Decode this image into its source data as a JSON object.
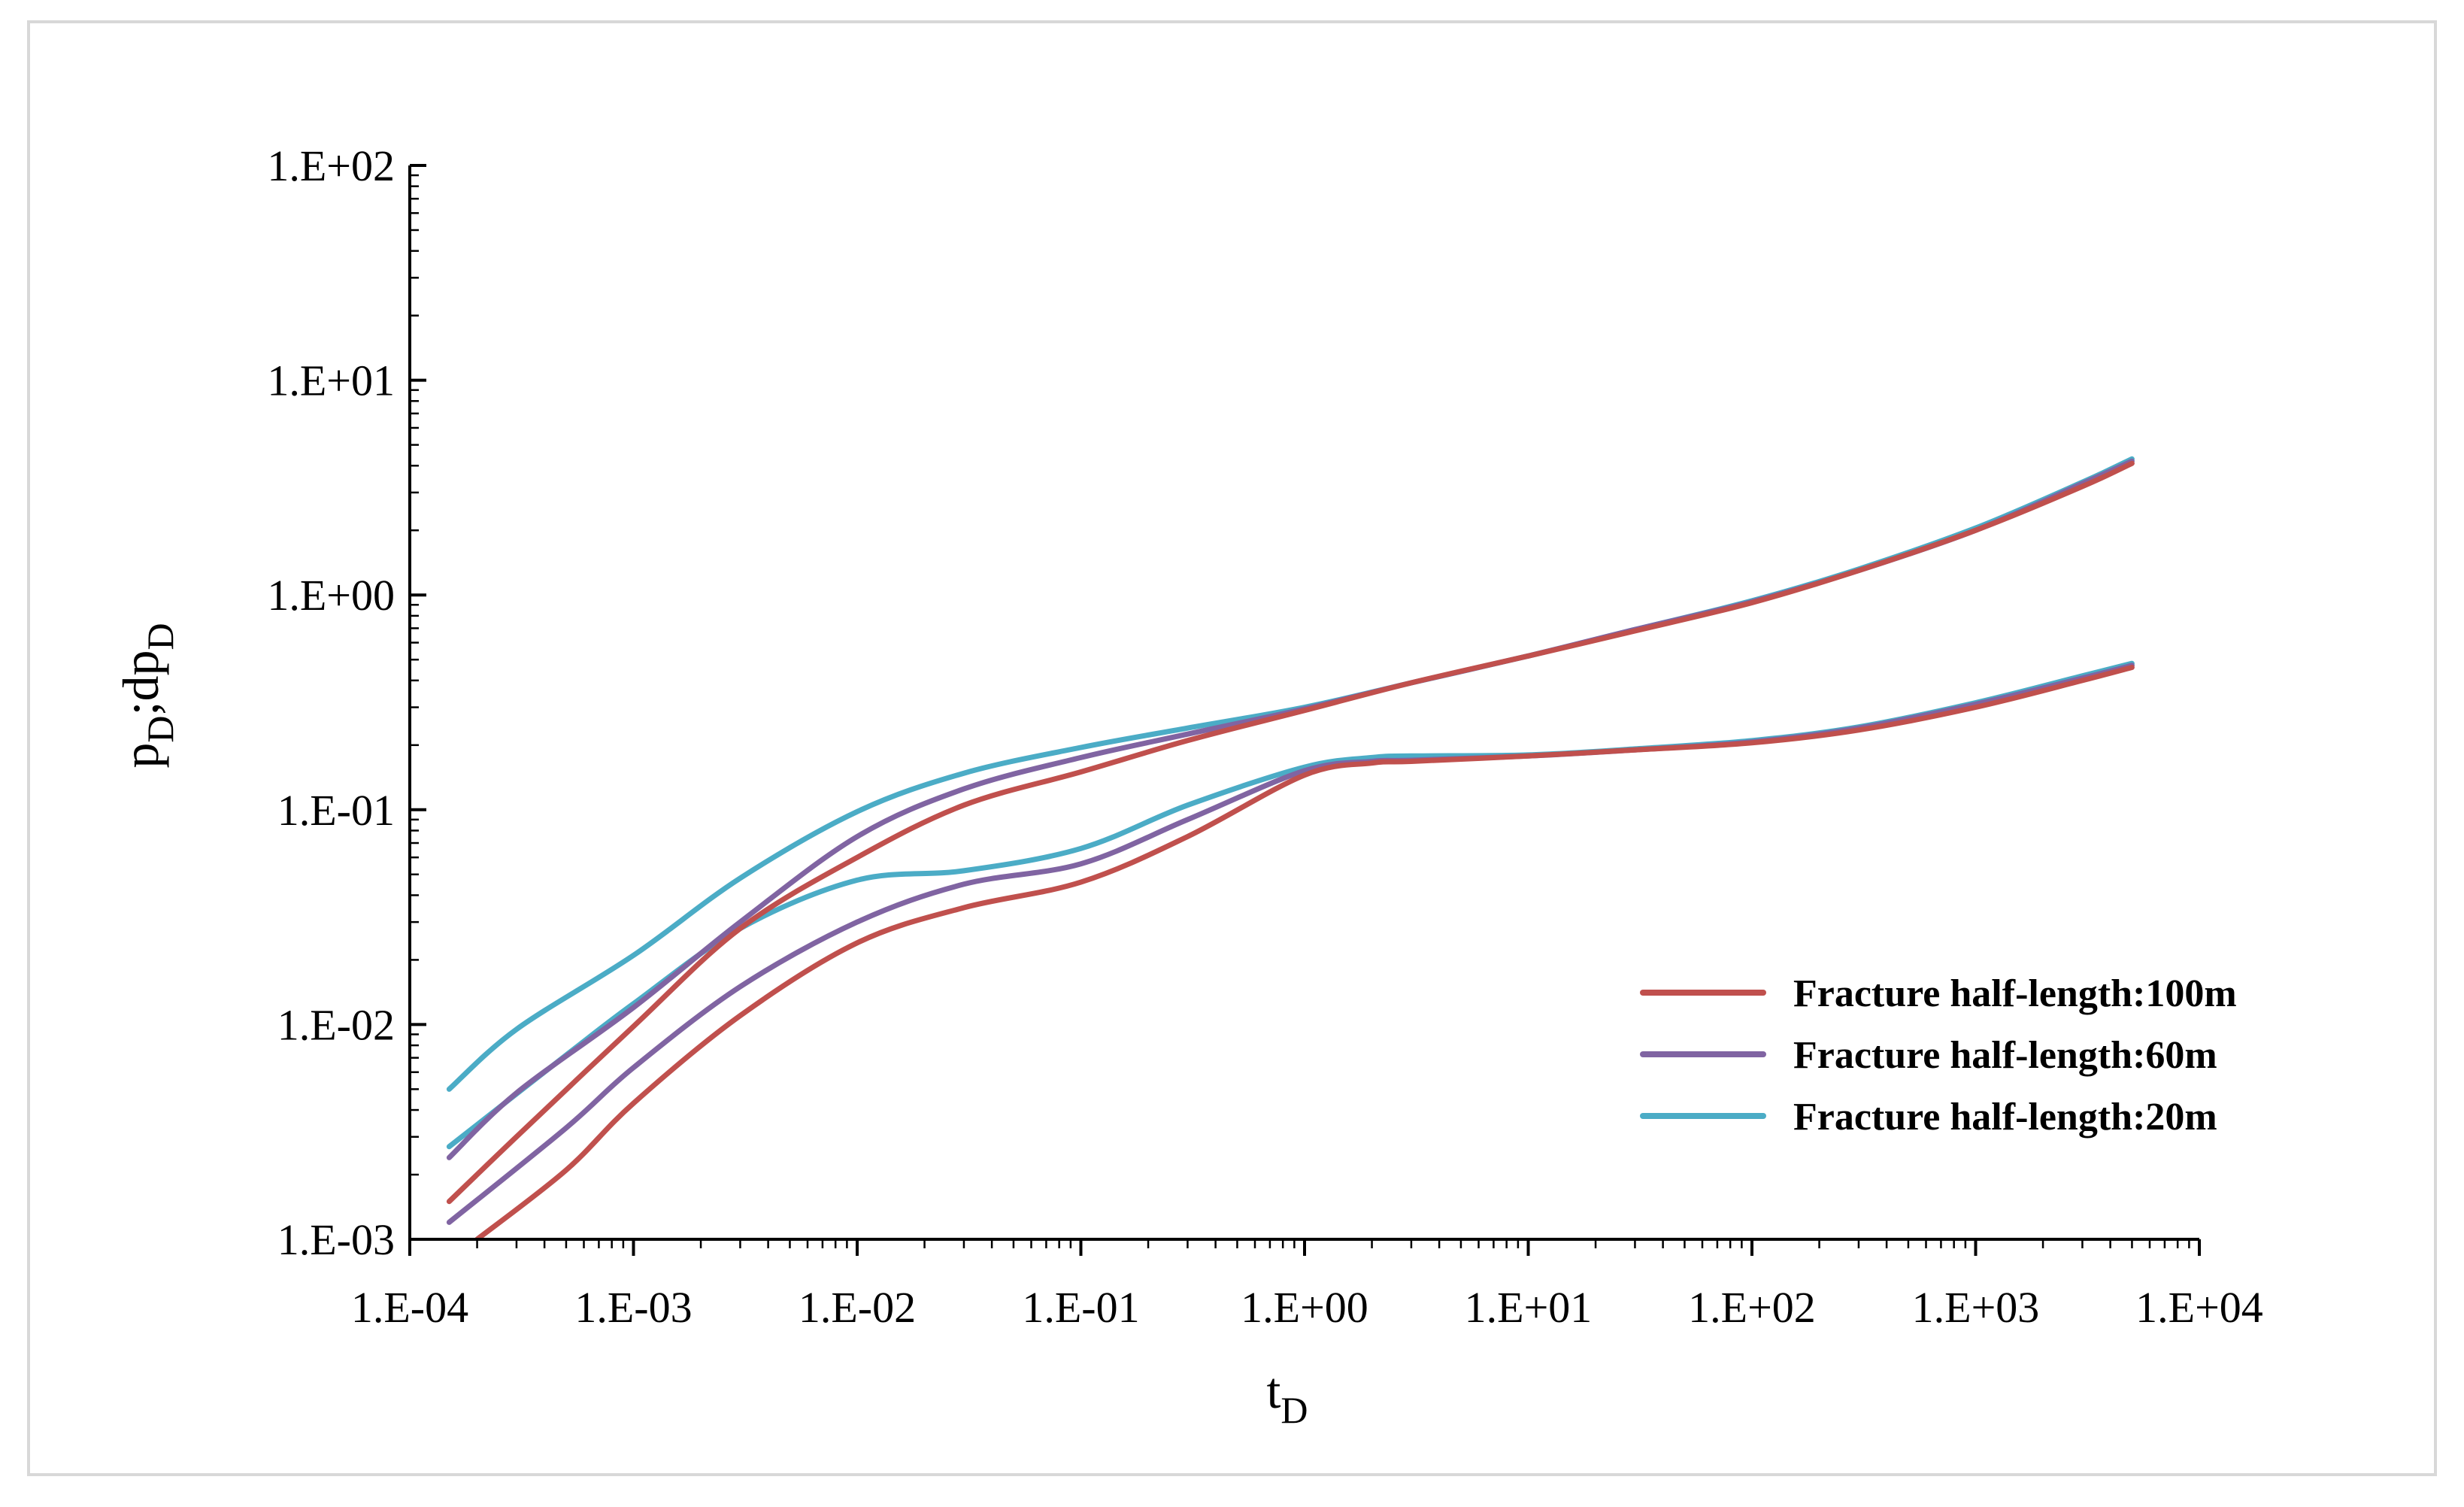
{
  "chart_data": {
    "type": "line",
    "title": "",
    "xlabel": {
      "main": "t",
      "sub": "D"
    },
    "ylabel": {
      "p": "p",
      "p_sub": "D",
      "sep": ";dp",
      "dp_sub": "D"
    },
    "xscale": "log",
    "yscale": "log",
    "xlim": [
      0.0001,
      10000
    ],
    "ylim": [
      0.001,
      100
    ],
    "grid": false,
    "legend_position": "lower-right",
    "x_ticks": [
      {
        "value": 0.0001,
        "label": "1.E-04"
      },
      {
        "value": 0.001,
        "label": "1.E-03"
      },
      {
        "value": 0.01,
        "label": "1.E-02"
      },
      {
        "value": 0.1,
        "label": "1.E-01"
      },
      {
        "value": 1,
        "label": "1.E+00"
      },
      {
        "value": 10,
        "label": "1.E+01"
      },
      {
        "value": 100,
        "label": "1.E+02"
      },
      {
        "value": 1000,
        "label": "1.E+03"
      },
      {
        "value": 10000,
        "label": "1.E+04"
      }
    ],
    "y_ticks": [
      {
        "value": 0.001,
        "label": "1.E-03"
      },
      {
        "value": 0.01,
        "label": "1.E-02"
      },
      {
        "value": 0.1,
        "label": "1.E-01"
      },
      {
        "value": 1,
        "label": "1.E+00"
      },
      {
        "value": 10,
        "label": "1.E+01"
      },
      {
        "value": 100,
        "label": "1.E+02"
      }
    ],
    "series": [
      {
        "name": "Fracture half-length:100m",
        "color": "#c0504d",
        "pressure": [
          [
            0.00015,
            0.0015
          ],
          [
            0.0003,
            0.003
          ],
          [
            0.001,
            0.0098
          ],
          [
            0.003,
            0.028
          ],
          [
            0.01,
            0.06
          ],
          [
            0.03,
            0.105
          ],
          [
            0.1,
            0.15
          ],
          [
            0.3,
            0.21
          ],
          [
            1,
            0.29
          ],
          [
            3,
            0.39
          ],
          [
            10,
            0.52
          ],
          [
            30,
            0.68
          ],
          [
            100,
            0.92
          ],
          [
            300,
            1.3
          ],
          [
            1000,
            2.0
          ],
          [
            3000,
            3.2
          ],
          [
            5000,
            4.1
          ]
        ],
        "derivative": [
          [
            0.0002,
            0.001
          ],
          [
            0.0005,
            0.0021
          ],
          [
            0.001,
            0.0043
          ],
          [
            0.003,
            0.011
          ],
          [
            0.01,
            0.024
          ],
          [
            0.03,
            0.035
          ],
          [
            0.1,
            0.046
          ],
          [
            0.3,
            0.075
          ],
          [
            1,
            0.145
          ],
          [
            2,
            0.165
          ],
          [
            3,
            0.168
          ],
          [
            10,
            0.178
          ],
          [
            30,
            0.19
          ],
          [
            100,
            0.205
          ],
          [
            300,
            0.235
          ],
          [
            1000,
            0.3
          ],
          [
            3000,
            0.4
          ],
          [
            5000,
            0.46
          ]
        ]
      },
      {
        "name": "Fracture half-length:60m",
        "color": "#8064a2",
        "pressure": [
          [
            0.00015,
            0.0024
          ],
          [
            0.0003,
            0.0048
          ],
          [
            0.001,
            0.012
          ],
          [
            0.003,
            0.03
          ],
          [
            0.01,
            0.075
          ],
          [
            0.03,
            0.125
          ],
          [
            0.1,
            0.175
          ],
          [
            0.3,
            0.225
          ],
          [
            1,
            0.295
          ],
          [
            3,
            0.39
          ],
          [
            10,
            0.52
          ],
          [
            30,
            0.69
          ],
          [
            100,
            0.93
          ],
          [
            300,
            1.3
          ],
          [
            1000,
            2.0
          ],
          [
            3000,
            3.3
          ],
          [
            5000,
            4.2
          ]
        ],
        "derivative": [
          [
            0.00015,
            0.0012
          ],
          [
            0.0005,
            0.0033
          ],
          [
            0.001,
            0.0063
          ],
          [
            0.003,
            0.015
          ],
          [
            0.01,
            0.03
          ],
          [
            0.03,
            0.045
          ],
          [
            0.1,
            0.056
          ],
          [
            0.3,
            0.09
          ],
          [
            1,
            0.152
          ],
          [
            2,
            0.168
          ],
          [
            3,
            0.17
          ],
          [
            10,
            0.178
          ],
          [
            30,
            0.19
          ],
          [
            100,
            0.207
          ],
          [
            300,
            0.24
          ],
          [
            1000,
            0.31
          ],
          [
            3000,
            0.41
          ],
          [
            5000,
            0.47
          ]
        ]
      },
      {
        "name": "Fracture half-length:20m",
        "color": "#4bacc6",
        "pressure": [
          [
            0.00015,
            0.005
          ],
          [
            0.0003,
            0.0095
          ],
          [
            0.001,
            0.021
          ],
          [
            0.003,
            0.048
          ],
          [
            0.01,
            0.098
          ],
          [
            0.03,
            0.148
          ],
          [
            0.1,
            0.195
          ],
          [
            0.3,
            0.24
          ],
          [
            1,
            0.3
          ],
          [
            3,
            0.39
          ],
          [
            10,
            0.52
          ],
          [
            30,
            0.69
          ],
          [
            100,
            0.94
          ],
          [
            300,
            1.32
          ],
          [
            1000,
            2.05
          ],
          [
            3000,
            3.35
          ],
          [
            5000,
            4.3
          ]
        ],
        "derivative": [
          [
            0.00015,
            0.0027
          ],
          [
            0.0005,
            0.0072
          ],
          [
            0.001,
            0.0125
          ],
          [
            0.003,
            0.028
          ],
          [
            0.01,
            0.047
          ],
          [
            0.03,
            0.052
          ],
          [
            0.1,
            0.066
          ],
          [
            0.3,
            0.105
          ],
          [
            1,
            0.158
          ],
          [
            2,
            0.175
          ],
          [
            3,
            0.178
          ],
          [
            10,
            0.18
          ],
          [
            30,
            0.192
          ],
          [
            100,
            0.21
          ],
          [
            300,
            0.243
          ],
          [
            1000,
            0.315
          ],
          [
            3000,
            0.42
          ],
          [
            5000,
            0.48
          ]
        ]
      }
    ]
  }
}
